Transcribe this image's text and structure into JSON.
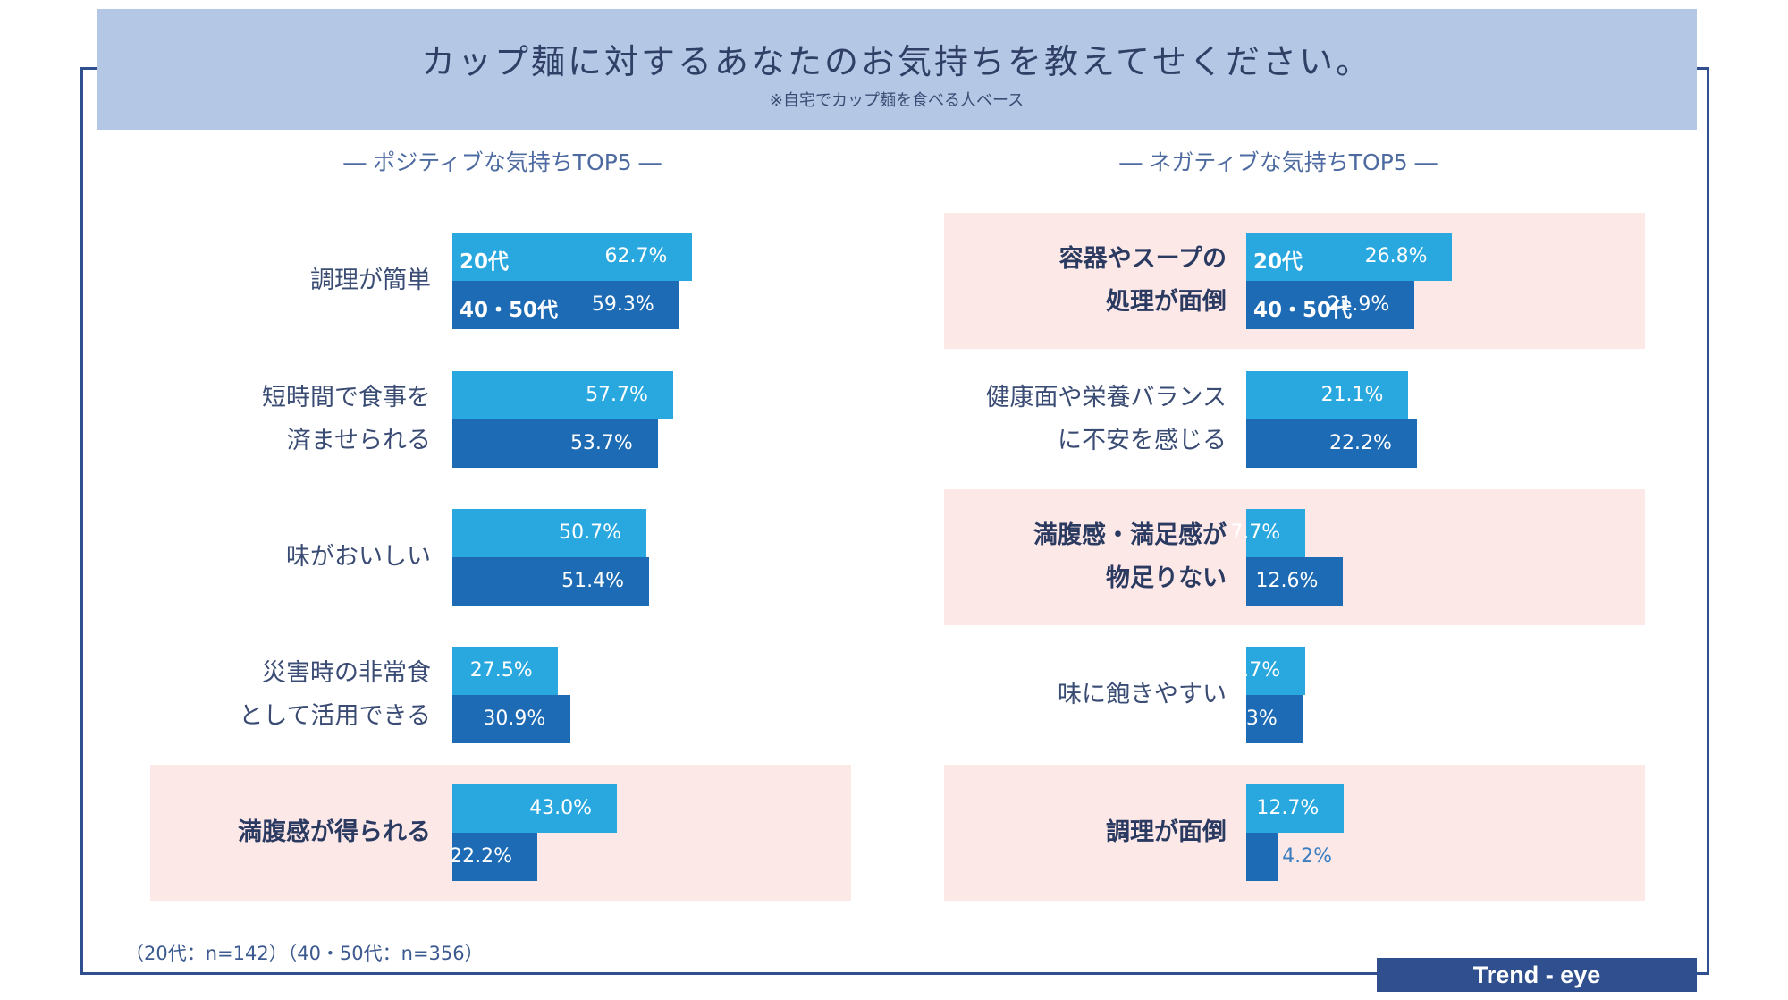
{
  "header": {
    "title": "カップ麺に対するあなたのお気持ちを教えてせください。",
    "subtitle": "※自宅でカップ麺を食べる人ベース"
  },
  "chart_data": [
    {
      "type": "bar",
      "title": "― ポジティブな気持ちTOP5 ―",
      "categories": [
        "調理が簡単",
        "短時間で食事を\n済ませられる",
        "味がおいしい",
        "災害時の非常食\nとして活用できる",
        "満腹感が得られる"
      ],
      "series": [
        {
          "name": "20代",
          "values": [
            62.7,
            57.7,
            50.7,
            27.5,
            43.0
          ]
        },
        {
          "name": "40・50代",
          "values": [
            59.3,
            53.7,
            51.4,
            30.9,
            22.2
          ]
        }
      ],
      "value_labels": {
        "20代": [
          "62.7%",
          "57.7%",
          "50.7%",
          "27.5%",
          "43.0%"
        ],
        "40・50代": [
          "59.3%",
          "53.7%",
          "51.4%",
          "30.9%",
          "22.2%"
        ]
      },
      "highlighted": [
        false,
        false,
        false,
        false,
        true
      ],
      "xlim": [
        0,
        100
      ]
    },
    {
      "type": "bar",
      "title": "― ネガティブな気持ちTOP5 ―",
      "categories": [
        "容器やスープの\n処理が面倒",
        "健康面や栄養バランス\nに不安を感じる",
        "満腹感・満足感が\n物足りない",
        "味に飽きやすい",
        "調理が面倒"
      ],
      "series": [
        {
          "name": "20代",
          "values": [
            26.8,
            21.1,
            7.7,
            7.7,
            12.7
          ]
        },
        {
          "name": "40・50代",
          "values": [
            21.9,
            22.2,
            12.6,
            7.3,
            4.2
          ]
        }
      ],
      "value_labels": {
        "20代": [
          "26.8%",
          "21.1%",
          "7.7%",
          "7.7%",
          "12.7%"
        ],
        "40・50代": [
          "21.9%",
          "22.2%",
          "12.6%",
          "7.3%",
          "4.2%"
        ]
      },
      "highlighted": [
        true,
        false,
        true,
        false,
        true
      ],
      "xlim": [
        0,
        100
      ]
    }
  ],
  "colors": {
    "series_20": "#29a8e0",
    "series_4050": "#1c6bb4",
    "highlight": "#fde8e8",
    "header_bg": "#b4c7e4",
    "frame": "#2f4f8f"
  },
  "footnote": "（20代：n=142）（40・50代：n=356）",
  "brand": "Trend - eye"
}
